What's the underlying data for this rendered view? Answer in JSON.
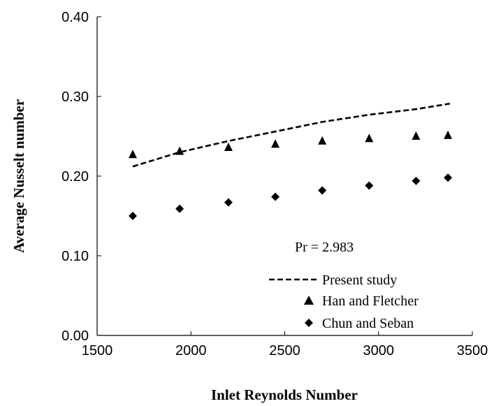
{
  "chart_data": {
    "type": "line",
    "xlabel": "Inlet Reynolds Number",
    "ylabel": "Average Nusselt number",
    "xlim": [
      1500,
      3500
    ],
    "ylim": [
      0.0,
      0.4
    ],
    "xticks": [
      1500,
      2000,
      2500,
      3000,
      3500
    ],
    "xtick_labels": [
      "1500",
      "2000",
      "2500",
      "3000",
      "3500"
    ],
    "yticks": [
      0.0,
      0.1,
      0.2,
      0.3,
      0.4
    ],
    "ytick_labels": [
      "0.00",
      "0.10",
      "0.20",
      "0.30",
      "0.40"
    ],
    "grid": false,
    "legend_position": "bottom-right",
    "annotation": "Pr = 2.983",
    "series": [
      {
        "name": "Present study",
        "style": "dashed-line",
        "color": "#000000",
        "x": [
          1690,
          1940,
          2200,
          2450,
          2700,
          2950,
          3200,
          3380
        ],
        "y": [
          0.212,
          0.23,
          0.244,
          0.256,
          0.268,
          0.277,
          0.284,
          0.291
        ]
      },
      {
        "name": "Han and Fletcher",
        "style": "triangle-marker",
        "color": "#000000",
        "x": [
          1690,
          1940,
          2200,
          2450,
          2700,
          2950,
          3200,
          3370
        ],
        "y": [
          0.227,
          0.231,
          0.236,
          0.24,
          0.244,
          0.247,
          0.25,
          0.251
        ]
      },
      {
        "name": "Chun and Seban",
        "style": "diamond-marker",
        "color": "#000000",
        "x": [
          1690,
          1940,
          2200,
          2450,
          2700,
          2950,
          3200,
          3370
        ],
        "y": [
          0.15,
          0.159,
          0.167,
          0.174,
          0.182,
          0.188,
          0.194,
          0.198
        ]
      }
    ]
  }
}
